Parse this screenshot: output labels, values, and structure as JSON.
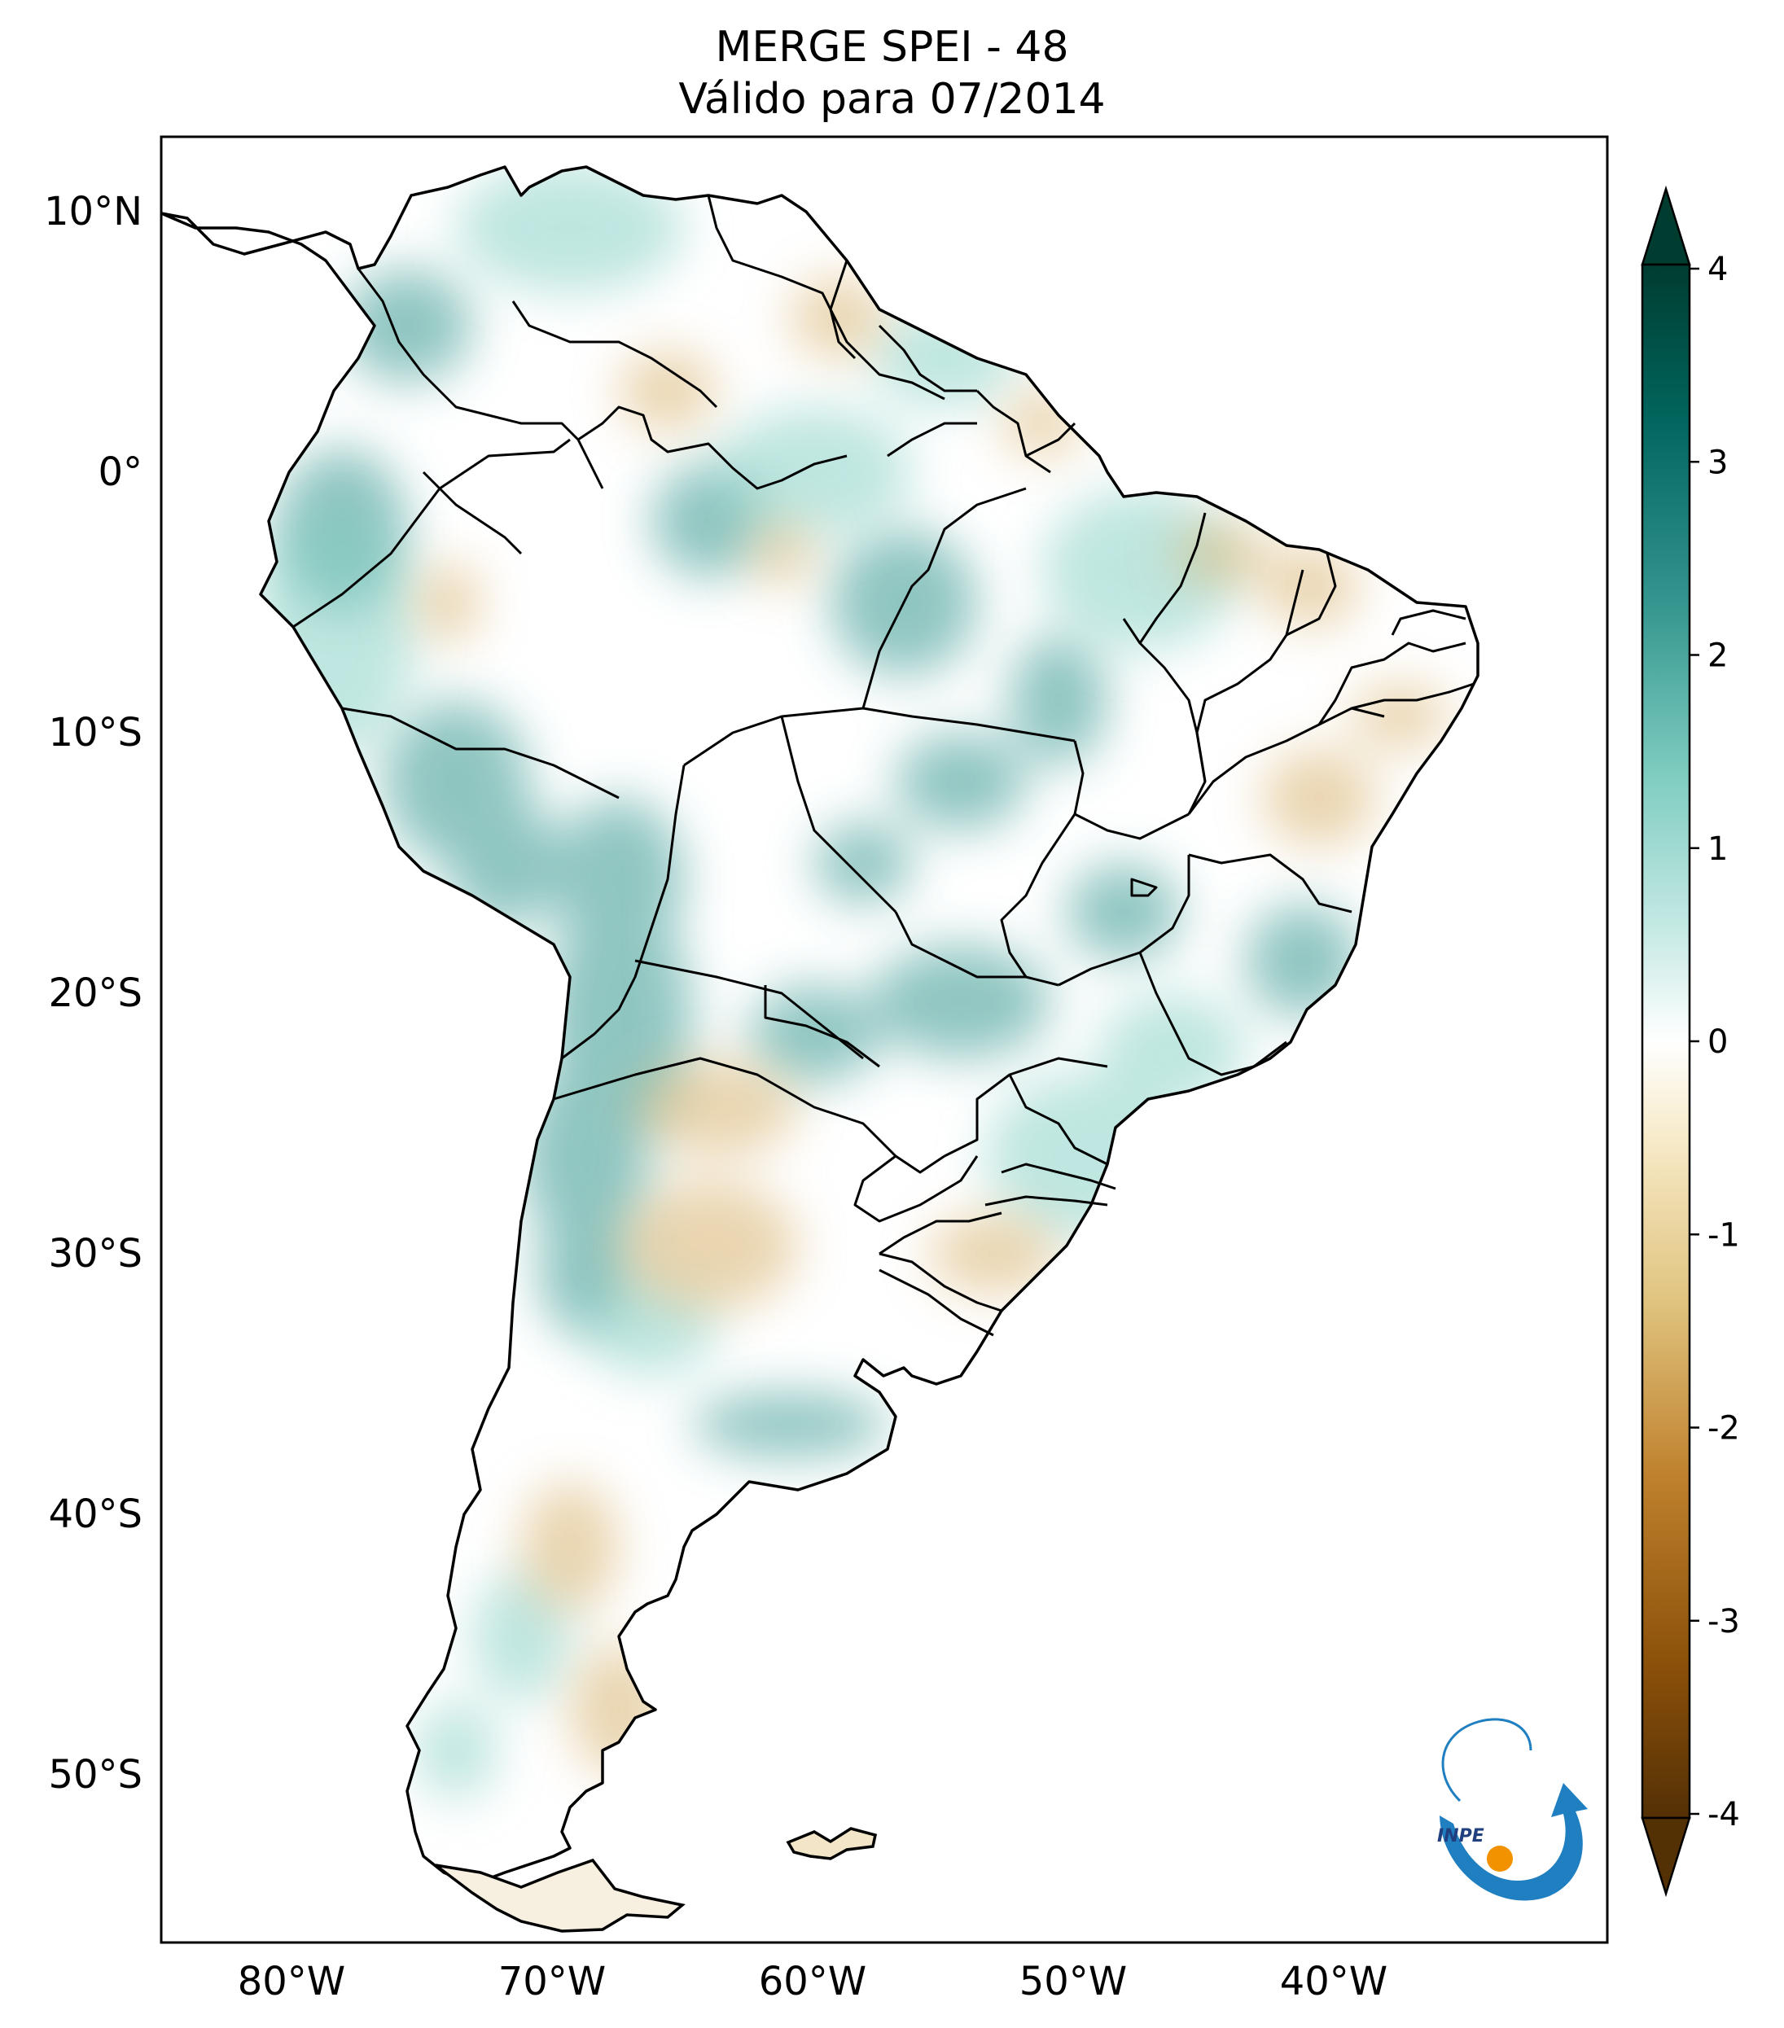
{
  "title": {
    "line1": "MERGE   SPEI - 48",
    "line2": "Válido para 07/2014"
  },
  "axes": {
    "lat_ticks": [
      "10°N",
      "0°",
      "10°S",
      "20°S",
      "30°S",
      "40°S",
      "50°S"
    ],
    "lon_ticks": [
      "80°W",
      "70°W",
      "60°W",
      "50°W",
      "40°W"
    ]
  },
  "colorbar": {
    "ticks": [
      "4",
      "3",
      "2",
      "1",
      "0",
      "-1",
      "-2",
      "-3",
      "-4"
    ],
    "colormap": "BrBG",
    "stops": [
      "#543005",
      "#8c510a",
      "#bf812d",
      "#dfc27d",
      "#f6e8c3",
      "#ffffff",
      "#c7eae5",
      "#80cdc1",
      "#35978f",
      "#01665e",
      "#003c30"
    ]
  },
  "logo": {
    "text": "INPE",
    "colors": {
      "arc": "#1f7fc1",
      "dot": "#f39200"
    }
  },
  "colors": {
    "wet": "#35978f",
    "dry": "#d8b370",
    "border": "#000000"
  }
}
